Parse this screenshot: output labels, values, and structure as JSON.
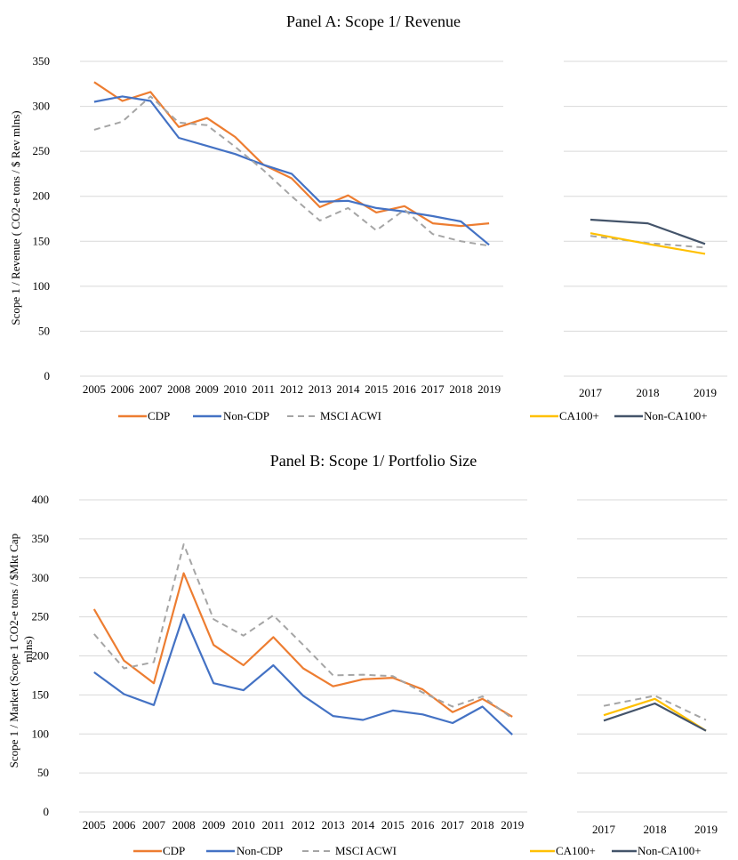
{
  "colors": {
    "cdp": "#ED7D31",
    "non_cdp": "#4472C4",
    "msci": "#A5A5A5",
    "ca100": "#FFC000",
    "non_ca100": "#44546A",
    "grid": "#D9D9D9"
  },
  "chart_data": [
    {
      "type": "line",
      "panel": "A",
      "title": "Panel A: Scope 1/ Revenue",
      "ylabel": "Scope 1 / Revenue ( CO2-e tons / $ Rev mlns)",
      "ylim": [
        0,
        350
      ],
      "yticks": [
        0,
        50,
        100,
        150,
        200,
        250,
        300,
        350
      ],
      "grid": true,
      "legend_position": "bottom",
      "main": {
        "x": [
          "2005",
          "2006",
          "2007",
          "2008",
          "2009",
          "2010",
          "2011",
          "2012",
          "2013",
          "2014",
          "2015",
          "2016",
          "2017",
          "2018",
          "2019"
        ],
        "series": [
          {
            "name": "CDP",
            "style": "solid",
            "color_key": "cdp",
            "values": [
              327,
              306,
              316,
              277,
              287,
              266,
              235,
              220,
              188,
              201,
              182,
              189,
              170,
              167,
              170
            ]
          },
          {
            "name": "Non-CDP",
            "style": "solid",
            "color_key": "non_cdp",
            "values": [
              305,
              311,
              306,
              265,
              256,
              247,
              235,
              225,
              194,
              195,
              187,
              183,
              178,
              172,
              146
            ]
          },
          {
            "name": "MSCI ACWI",
            "style": "dashed",
            "color_key": "msci",
            "values": [
              274,
              283,
              311,
              282,
              279,
              255,
              229,
              200,
              173,
              187,
              162,
              185,
              158,
              150,
              145
            ]
          }
        ]
      },
      "side": {
        "x": [
          "2017",
          "2018",
          "2019"
        ],
        "series": [
          {
            "name": "CA100+",
            "style": "solid",
            "color_key": "ca100",
            "values": [
              159,
              147,
              136
            ]
          },
          {
            "name": "Non-CA100+",
            "style": "solid",
            "color_key": "non_ca100",
            "values": [
              174,
              170,
              147
            ]
          },
          {
            "name": "",
            "style": "dashed",
            "color_key": "msci",
            "values": [
              156,
              148,
              143
            ]
          }
        ]
      }
    },
    {
      "type": "line",
      "panel": "B",
      "title": "Panel B: Scope 1/ Portfolio Size",
      "ylabel": "Scope 1 / Market (Scope 1 CO2-e tons / $Mkt Cap mlns)",
      "ylim": [
        0,
        400
      ],
      "yticks": [
        0,
        50,
        100,
        150,
        200,
        250,
        300,
        350,
        400
      ],
      "grid": true,
      "legend_position": "bottom",
      "main": {
        "x": [
          "2005",
          "2006",
          "2007",
          "2008",
          "2009",
          "2010",
          "2011",
          "2012",
          "2013",
          "2014",
          "2015",
          "2016",
          "2017",
          "2018",
          "2019"
        ],
        "series": [
          {
            "name": "CDP",
            "style": "solid",
            "color_key": "cdp",
            "values": [
              260,
              194,
              165,
              306,
              214,
              188,
              224,
              184,
              161,
              170,
              172,
              157,
              128,
              145,
              122
            ]
          },
          {
            "name": "Non-CDP",
            "style": "solid",
            "color_key": "non_cdp",
            "values": [
              179,
              151,
              137,
              253,
              165,
              156,
              188,
              149,
              123,
              118,
              130,
              125,
              114,
              135,
              99
            ]
          },
          {
            "name": "MSCI ACWI",
            "style": "dashed",
            "color_key": "msci",
            "values": [
              228,
              184,
              192,
              343,
              247,
              226,
              252,
              214,
              175,
              176,
              174,
              153,
              135,
              148,
              120
            ]
          }
        ]
      },
      "side": {
        "x": [
          "2017",
          "2018",
          "2019"
        ],
        "series": [
          {
            "name": "CA100+",
            "style": "solid",
            "color_key": "ca100",
            "values": [
              124,
              145,
              104
            ]
          },
          {
            "name": "Non-CA100+",
            "style": "solid",
            "color_key": "non_ca100",
            "values": [
              117,
              139,
              104
            ]
          },
          {
            "name": "",
            "style": "dashed",
            "color_key": "msci",
            "values": [
              136,
              149,
              118
            ]
          }
        ]
      }
    }
  ]
}
